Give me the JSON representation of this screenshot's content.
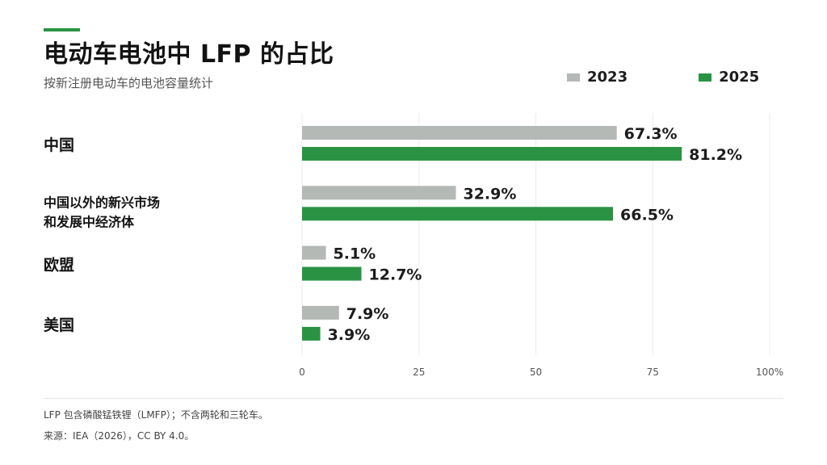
{
  "title": "电动车电池中 LFP 的占比",
  "subtitle": "按新注册电动车的电池容量统计",
  "colors": {
    "accent": "#2a9343",
    "series_2023": "#b4b9b5",
    "series_2025": "#2a9343",
    "grid": "#ececec"
  },
  "chart_data": {
    "type": "bar",
    "orientation": "horizontal",
    "categories": [
      "中国",
      "中国以外的新兴市场\n和发展中经济体",
      "欧盟",
      "美国"
    ],
    "series": [
      {
        "name": "2023",
        "values": [
          67.3,
          32.9,
          5.1,
          7.9
        ],
        "labels": [
          "67.3%",
          "32.9%",
          "5.1%",
          "7.9%"
        ]
      },
      {
        "name": "2025",
        "values": [
          81.2,
          66.5,
          12.7,
          3.9
        ],
        "labels": [
          "81.2%",
          "66.5%",
          "12.7%",
          "3.9%"
        ]
      }
    ],
    "xlim": [
      0,
      100
    ],
    "xticks": [
      "0",
      "25",
      "50",
      "75",
      "100%"
    ],
    "grid": true,
    "legend": "top-right"
  },
  "footnotes": {
    "note": "LFP 包含磷酸锰铁锂（LMFP）；不含两轮和三轮车。",
    "source": "来源：IEA（2026），CC BY 4.0。"
  }
}
